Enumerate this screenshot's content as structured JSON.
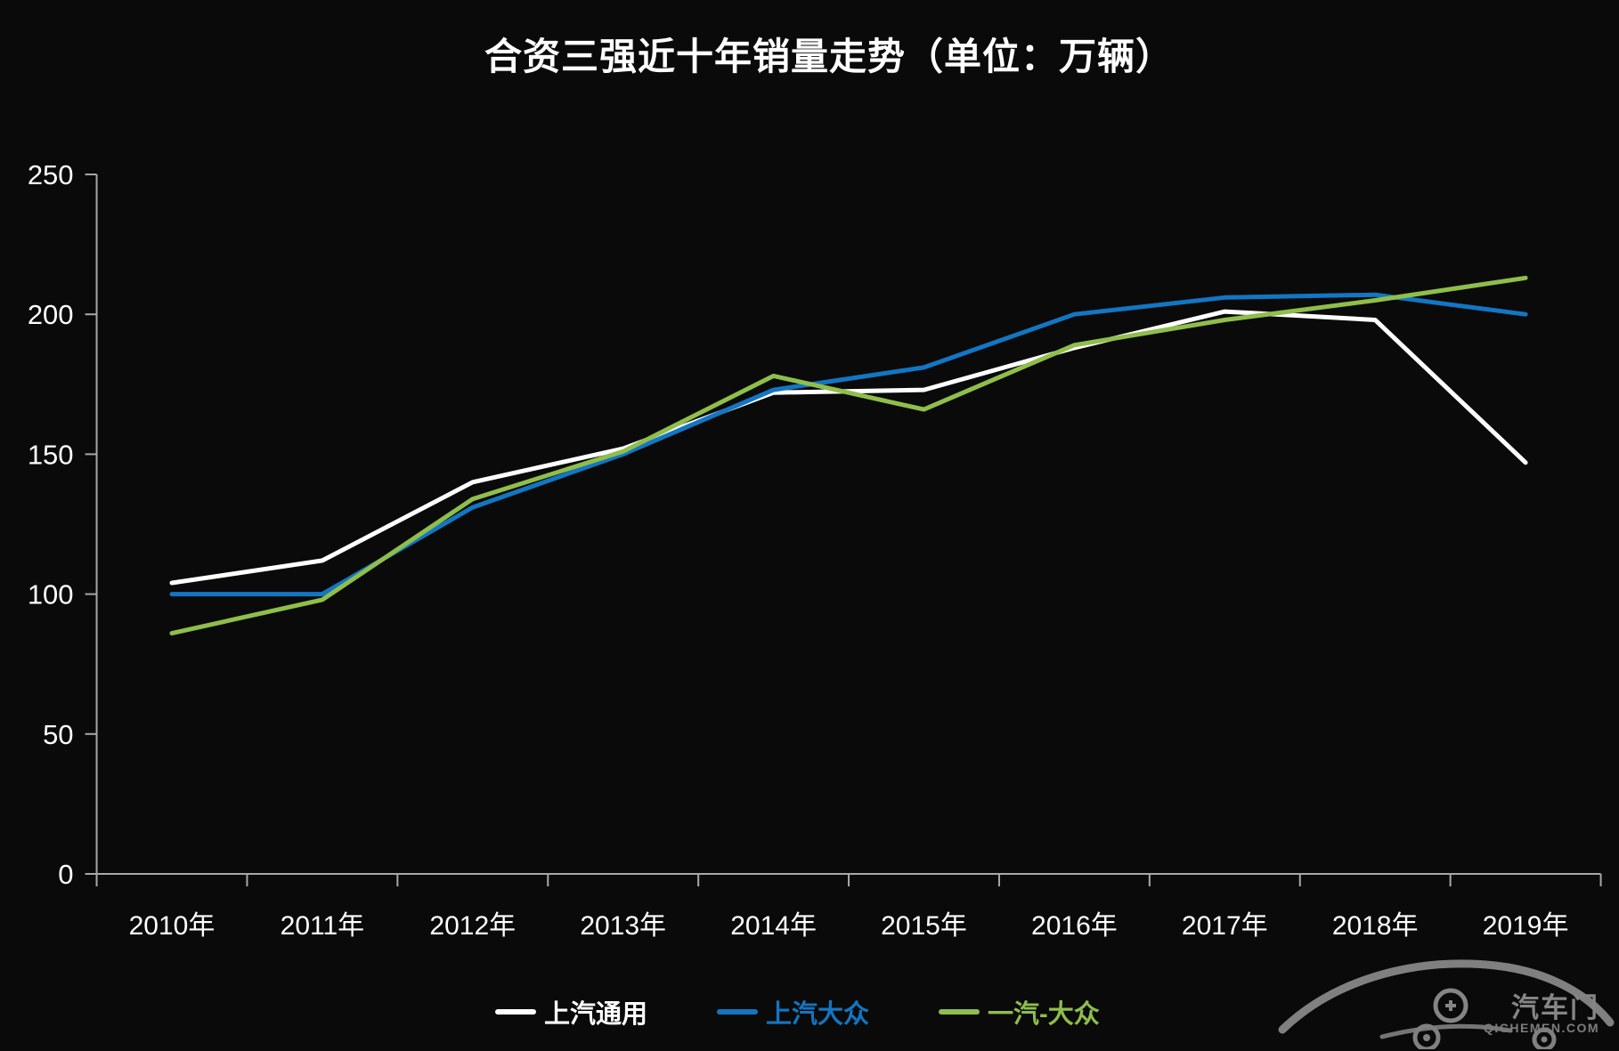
{
  "page": {
    "background": "#0a0a0a"
  },
  "chart_data": {
    "type": "line",
    "title": "合资三强近十年销量走势（单位：万辆）",
    "categories": [
      "2010年",
      "2011年",
      "2012年",
      "2013年",
      "2014年",
      "2015年",
      "2016年",
      "2017年",
      "2018年",
      "2019年"
    ],
    "series": [
      {
        "name": "上汽通用",
        "color": "#ffffff",
        "values": [
          104,
          112,
          140,
          152,
          172,
          173,
          188,
          201,
          198,
          147
        ]
      },
      {
        "name": "上汽大众",
        "color": "#1276c3",
        "values": [
          100,
          100,
          131,
          150,
          173,
          181,
          200,
          206,
          207,
          200
        ]
      },
      {
        "name": "一汽-大众",
        "color": "#8fbe4b",
        "values": [
          86,
          98,
          134,
          151,
          178,
          166,
          189,
          198,
          205,
          213
        ]
      }
    ],
    "ylabel": "",
    "xlabel": "",
    "ylim": [
      0,
      250
    ],
    "yticks": [
      0,
      50,
      100,
      150,
      200,
      250
    ],
    "grid": false,
    "legend_position": "bottom",
    "axis_color": "#a8a8a8",
    "label_color": "#ffffff"
  },
  "watermark": {
    "brand": "汽车门",
    "domain": "QICHEMEN.COM"
  }
}
